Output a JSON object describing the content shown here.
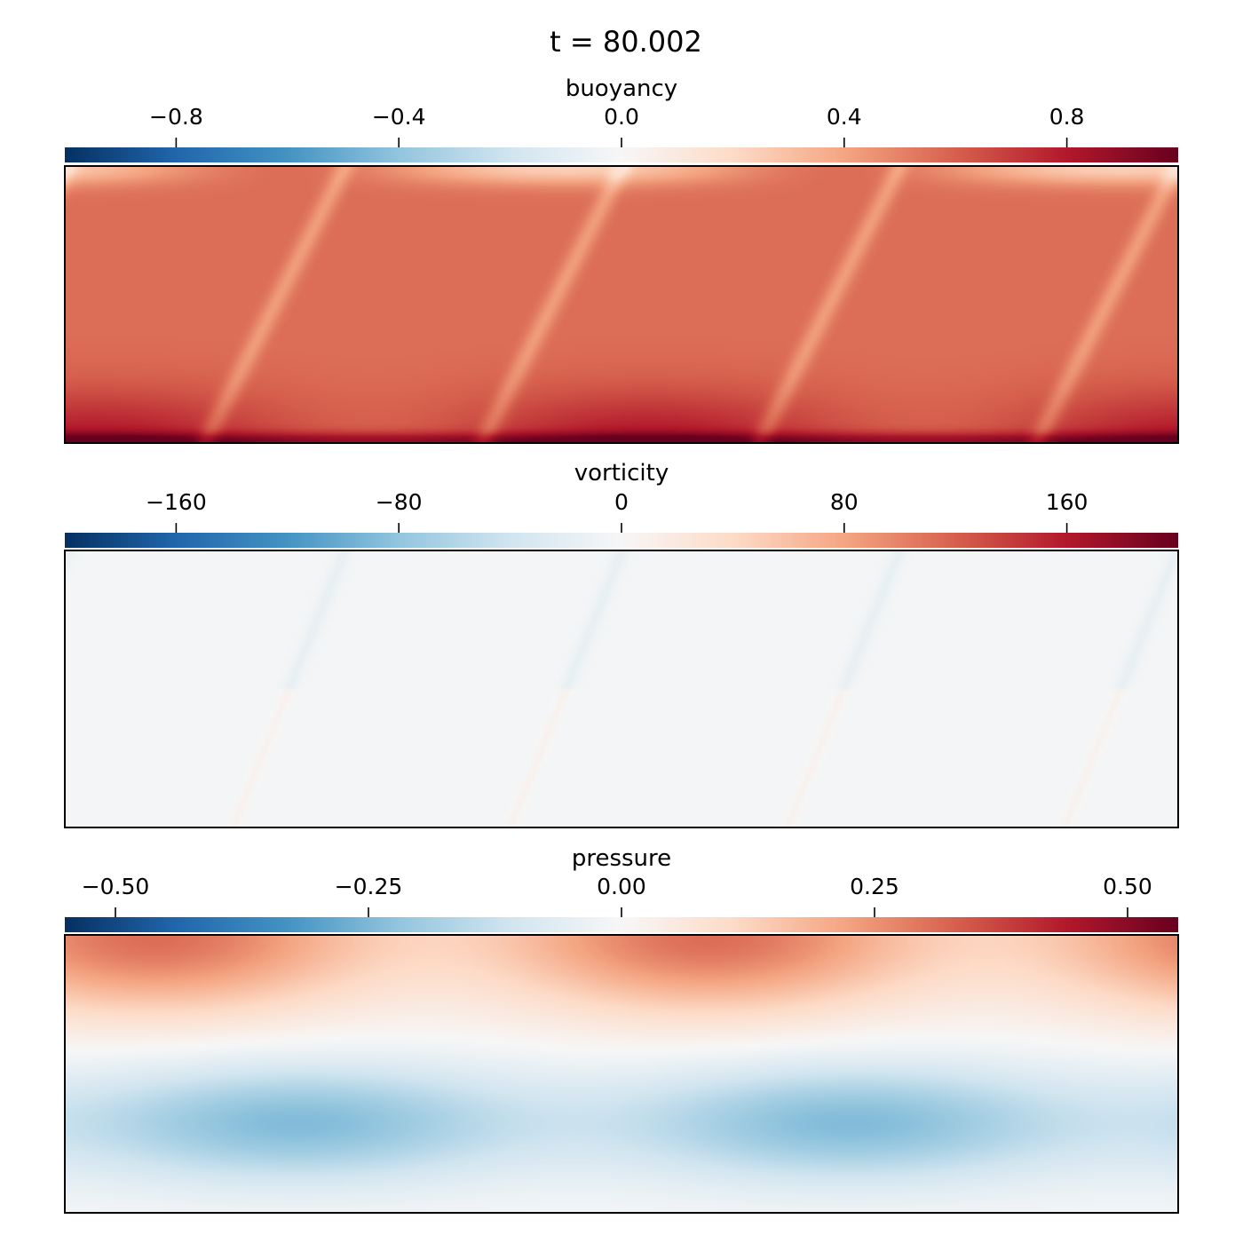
{
  "figure_title": "t = 80.002",
  "colormap": {
    "name": "RdBu_r",
    "stops": [
      "#053061",
      "#2166ac",
      "#4393c3",
      "#92c5de",
      "#d1e5f0",
      "#f7f7f7",
      "#fddbc7",
      "#f4a582",
      "#d6604d",
      "#b2182b",
      "#67001f"
    ]
  },
  "chart_data": [
    {
      "type": "heatmap",
      "title": "buoyancy",
      "clim": [
        -1.0,
        1.0
      ],
      "ticks": [
        -0.8,
        -0.4,
        0.0,
        0.4,
        0.8
      ],
      "tick_labels": [
        "−0.8",
        "−0.4",
        "0.0",
        "0.4",
        "0.8"
      ],
      "field_description": "mostly warm (~0.6) with hotter plumes near the bottom and cooler streaks along convection cell boundaries",
      "base_value": 0.6,
      "features": [
        {
          "kind": "hot_bottom_layer",
          "value": 0.9
        },
        {
          "kind": "cool_top_layer",
          "value": 0.3
        }
      ]
    },
    {
      "type": "heatmap",
      "title": "vorticity",
      "clim": [
        -200,
        200
      ],
      "ticks": [
        -160,
        -80,
        0,
        80,
        160
      ],
      "tick_labels": [
        "−160",
        "−80",
        "0",
        "80",
        "160"
      ],
      "base_value": 0
    },
    {
      "type": "heatmap",
      "title": "pressure",
      "clim": [
        -0.55,
        0.55
      ],
      "ticks": [
        -0.5,
        -0.25,
        0.0,
        0.25,
        0.5
      ],
      "tick_labels": [
        "−0.50",
        "−0.25",
        "0.00",
        "0.25",
        "0.50"
      ],
      "base_value": 0,
      "features": [
        {
          "kind": "high_top_peaks",
          "value": 0.5
        },
        {
          "kind": "low_bottom_lobes",
          "value": -0.25
        }
      ]
    }
  ]
}
